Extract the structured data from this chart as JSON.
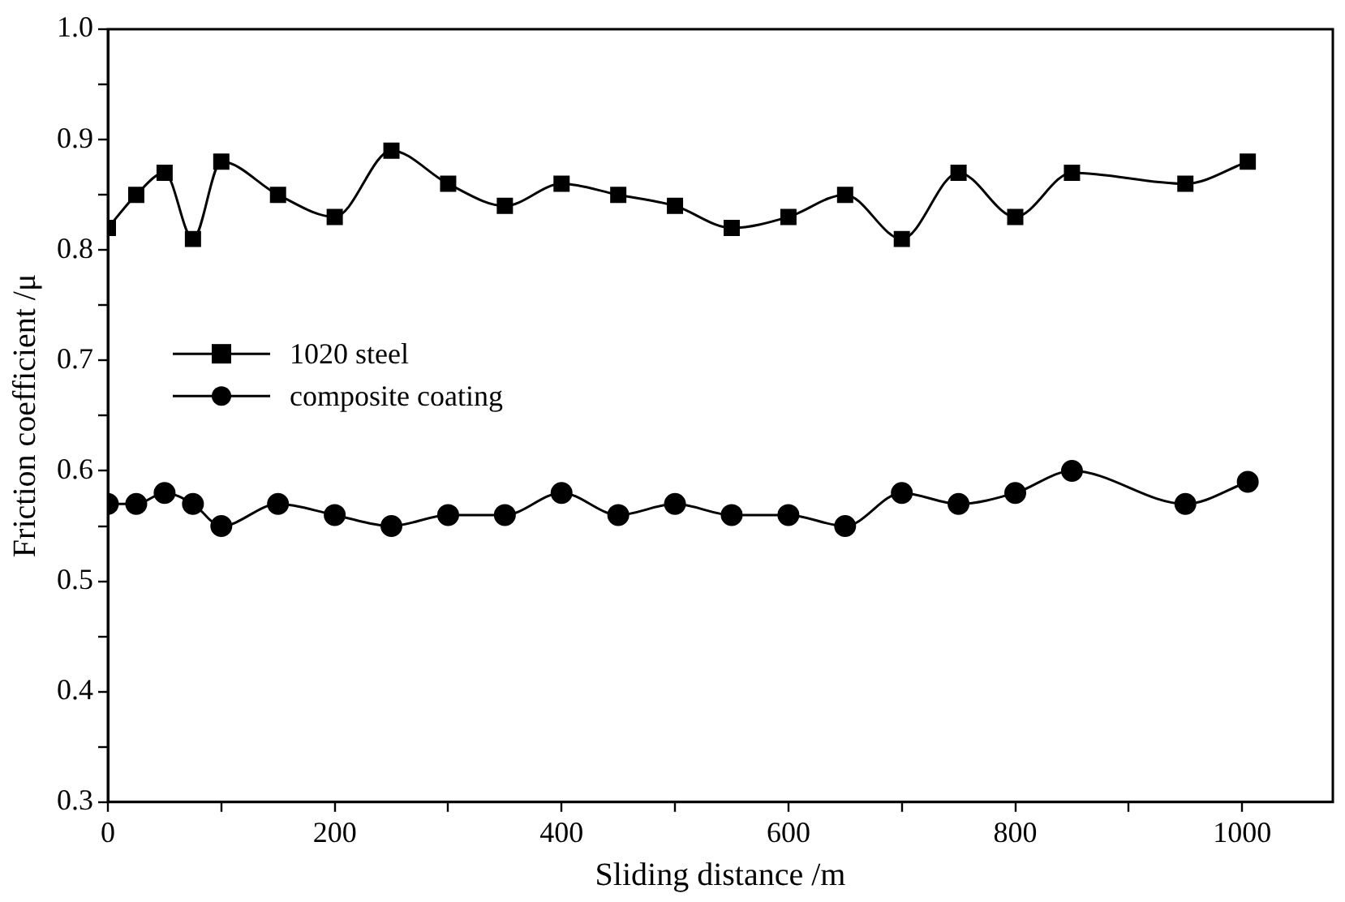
{
  "chart_data": {
    "type": "line",
    "xlabel": "Sliding distance /m",
    "ylabel": "Friction coefficient /μ",
    "xlim": [
      0,
      1080
    ],
    "xticks": [
      0,
      200,
      400,
      600,
      800,
      1000
    ],
    "ylim": [
      0.3,
      1.0
    ],
    "yticks": [
      0.3,
      0.4,
      0.5,
      0.6,
      0.7,
      0.8,
      0.9,
      {
        "value": 1.0,
        "label": "1.0"
      }
    ],
    "legend": "left",
    "grid": false,
    "series": [
      {
        "name": "1020 steel",
        "color": "#000000",
        "marker": "square",
        "x": [
          0,
          25,
          50,
          75,
          100,
          150,
          200,
          250,
          300,
          350,
          400,
          450,
          500,
          550,
          600,
          650,
          700,
          750,
          800,
          850,
          950,
          1005
        ],
        "values": [
          0.82,
          0.85,
          0.87,
          0.81,
          0.88,
          0.85,
          0.83,
          0.89,
          0.86,
          0.84,
          0.86,
          0.85,
          0.84,
          0.82,
          0.83,
          0.85,
          0.81,
          0.87,
          0.83,
          0.87,
          0.86,
          0.88
        ]
      },
      {
        "name": "composite coating",
        "color": "#000000",
        "marker": "circle",
        "x": [
          0,
          25,
          50,
          75,
          100,
          150,
          200,
          250,
          300,
          350,
          400,
          450,
          500,
          550,
          600,
          650,
          700,
          750,
          800,
          850,
          950,
          1005
        ],
        "values": [
          0.57,
          0.57,
          0.58,
          0.57,
          0.55,
          0.57,
          0.56,
          0.55,
          0.56,
          0.56,
          0.58,
          0.56,
          0.57,
          0.56,
          0.56,
          0.55,
          0.58,
          0.57,
          0.58,
          0.6,
          0.57,
          0.59
        ]
      }
    ]
  }
}
